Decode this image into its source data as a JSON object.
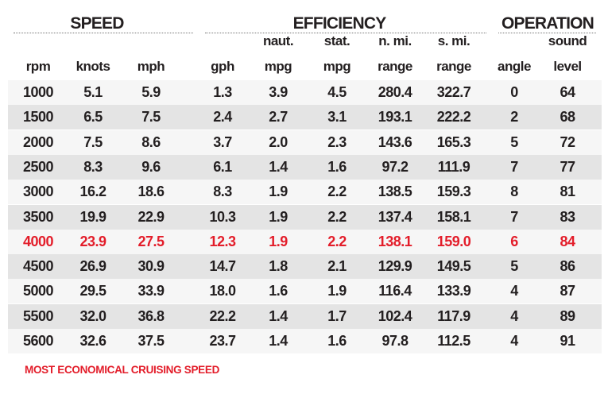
{
  "groups": {
    "speed": "SPEED",
    "efficiency": "EFFICIENCY",
    "operation": "OPERATION"
  },
  "columns": [
    {
      "top": "",
      "bottom": "rpm"
    },
    {
      "top": "",
      "bottom": "knots"
    },
    {
      "top": "",
      "bottom": "mph"
    },
    {
      "top": "",
      "bottom": "gph"
    },
    {
      "top": "naut.",
      "bottom": "mpg"
    },
    {
      "top": "stat.",
      "bottom": "mpg"
    },
    {
      "top": "n. mi.",
      "bottom": "range"
    },
    {
      "top": "s. mi.",
      "bottom": "range"
    },
    {
      "top": "",
      "bottom": "angle"
    },
    {
      "top": "sound",
      "bottom": "level"
    }
  ],
  "rows": [
    [
      "1000",
      "5.1",
      "5.9",
      "1.3",
      "3.9",
      "4.5",
      "280.4",
      "322.7",
      "0",
      "64"
    ],
    [
      "1500",
      "6.5",
      "7.5",
      "2.4",
      "2.7",
      "3.1",
      "193.1",
      "222.2",
      "2",
      "68"
    ],
    [
      "2000",
      "7.5",
      "8.6",
      "3.7",
      "2.0",
      "2.3",
      "143.6",
      "165.3",
      "5",
      "72"
    ],
    [
      "2500",
      "8.3",
      "9.6",
      "6.1",
      "1.4",
      "1.6",
      "97.2",
      "111.9",
      "7",
      "77"
    ],
    [
      "3000",
      "16.2",
      "18.6",
      "8.3",
      "1.9",
      "2.2",
      "138.5",
      "159.3",
      "8",
      "81"
    ],
    [
      "3500",
      "19.9",
      "22.9",
      "10.3",
      "1.9",
      "2.2",
      "137.4",
      "158.1",
      "7",
      "83"
    ],
    [
      "4000",
      "23.9",
      "27.5",
      "12.3",
      "1.9",
      "2.2",
      "138.1",
      "159.0",
      "6",
      "84"
    ],
    [
      "4500",
      "26.9",
      "30.9",
      "14.7",
      "1.8",
      "2.1",
      "129.9",
      "149.5",
      "5",
      "86"
    ],
    [
      "5000",
      "29.5",
      "33.9",
      "18.0",
      "1.6",
      "1.9",
      "116.4",
      "133.9",
      "4",
      "87"
    ],
    [
      "5500",
      "32.0",
      "36.8",
      "22.2",
      "1.4",
      "1.7",
      "102.4",
      "117.9",
      "4",
      "89"
    ],
    [
      "5600",
      "32.6",
      "37.5",
      "23.7",
      "1.4",
      "1.6",
      "97.8",
      "112.5",
      "4",
      "91"
    ]
  ],
  "highlight_row": 6,
  "highlight_color": "#e31d2a",
  "footnote": "MOST ECONOMICAL CRUISING SPEED"
}
